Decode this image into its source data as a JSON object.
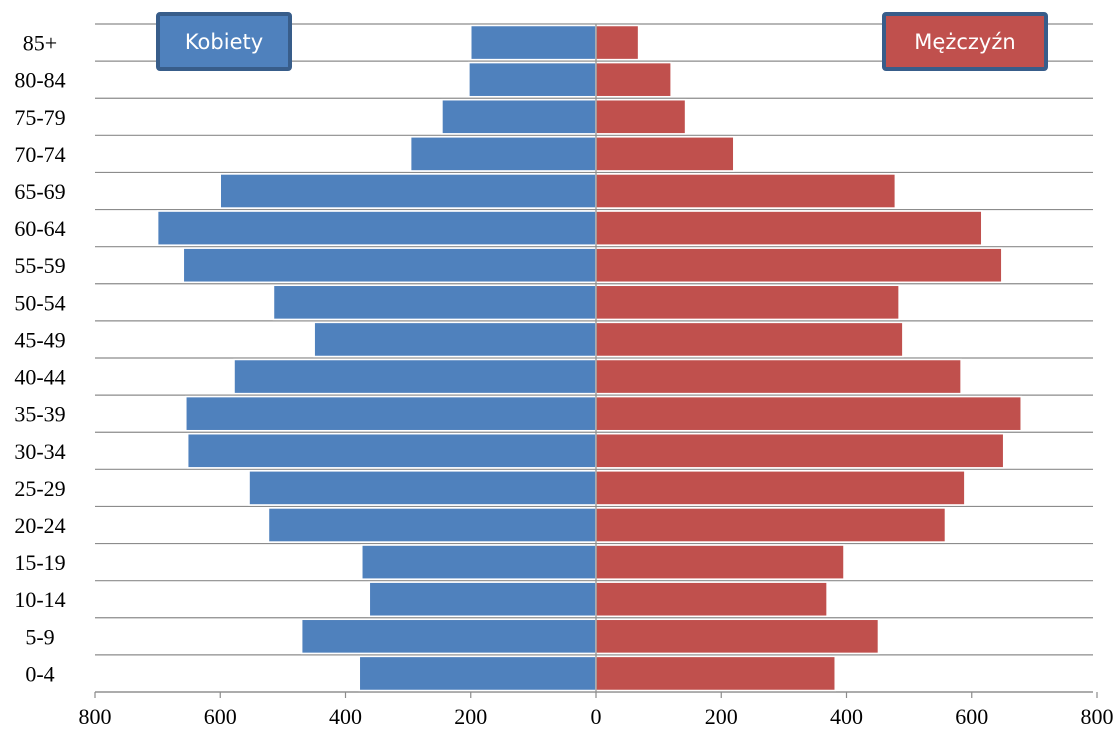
{
  "chart_data": {
    "type": "bar",
    "orientation": "horizontal",
    "subtype": "population-pyramid",
    "title": "",
    "xlabel": "",
    "ylabel": "",
    "categories": [
      "0-4",
      "5-9",
      "10-14",
      "15-19",
      "20-24",
      "25-29",
      "30-34",
      "35-39",
      "40-44",
      "45-49",
      "50-54",
      "55-59",
      "60-64",
      "65-69",
      "70-74",
      "75-79",
      "80-84",
      "85+"
    ],
    "series": [
      {
        "name": "Kobiety",
        "side": "left",
        "color": "#4F81BD",
        "values": [
          378,
          470,
          362,
          374,
          523,
          554,
          652,
          655,
          578,
          450,
          515,
          659,
          700,
          600,
          296,
          246,
          203,
          200
        ]
      },
      {
        "name": "Mężczyźn",
        "side": "right",
        "color": "#C0504D",
        "values": [
          382,
          451,
          369,
          396,
          558,
          589,
          651,
          679,
          583,
          490,
          484,
          648,
          616,
          478,
          220,
          143,
          120,
          68
        ]
      }
    ],
    "xlim": [
      -800,
      800
    ],
    "xticks": [
      {
        "value": -800,
        "label": "800"
      },
      {
        "value": -600,
        "label": "600"
      },
      {
        "value": -400,
        "label": "400"
      },
      {
        "value": -200,
        "label": "200"
      },
      {
        "value": 0,
        "label": "0"
      },
      {
        "value": 200,
        "label": "200"
      },
      {
        "value": 400,
        "label": "400"
      },
      {
        "value": 600,
        "label": "600"
      },
      {
        "value": 800,
        "label": "800"
      }
    ],
    "grid": "horizontal",
    "legend": {
      "placement": "top",
      "left_label": "Kobiety",
      "right_label": "Mężczyźn"
    }
  }
}
